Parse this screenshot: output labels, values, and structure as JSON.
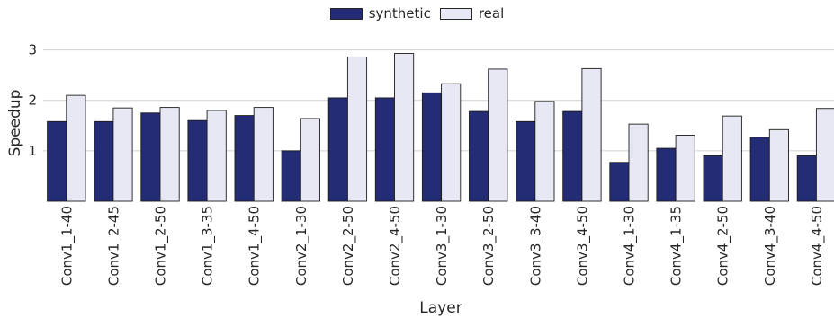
{
  "chart_data": {
    "type": "bar",
    "xlabel": "Layer",
    "ylabel": "Speedup",
    "ylim": [
      0,
      3.1
    ],
    "yticks": [
      1,
      2,
      3
    ],
    "grid": "horizontal",
    "legend_position": "top-center",
    "categories": [
      "Conv1_1-40",
      "Conv1_2-45",
      "Conv1_2-50",
      "Conv1_3-35",
      "Conv1_4-50",
      "Conv2_1-30",
      "Conv2_2-50",
      "Conv2_4-50",
      "Conv3_1-30",
      "Conv3_2-50",
      "Conv3_3-40",
      "Conv3_4-50",
      "Conv4_1-30",
      "Conv4_1-35",
      "Conv4_2-50",
      "Conv4_3-40",
      "Conv4_4-50"
    ],
    "series": [
      {
        "name": "synthetic",
        "color": "#232c74",
        "values": [
          1.58,
          1.58,
          1.75,
          1.6,
          1.7,
          1.0,
          2.05,
          2.05,
          2.15,
          1.78,
          1.58,
          1.78,
          0.77,
          1.05,
          0.9,
          1.27,
          0.9
        ]
      },
      {
        "name": "real",
        "color": "#e8e8f5",
        "values": [
          2.1,
          1.85,
          1.86,
          1.8,
          1.86,
          1.64,
          2.86,
          2.93,
          2.33,
          2.62,
          1.98,
          2.63,
          1.53,
          1.31,
          1.69,
          1.42,
          1.84
        ]
      }
    ]
  }
}
